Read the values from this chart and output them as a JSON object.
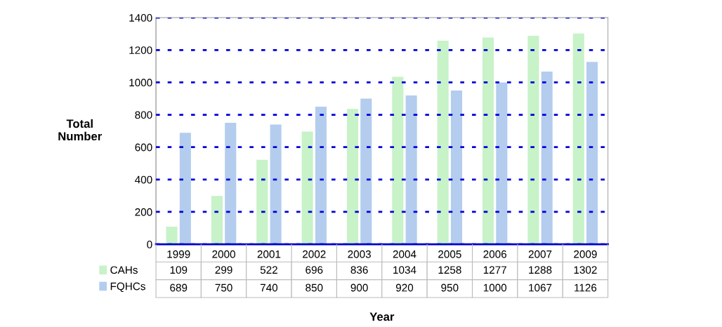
{
  "chart_data": {
    "type": "bar",
    "xlabel": "Year",
    "ylabel": "Total\nNumber",
    "categories": [
      "1999",
      "2000",
      "2001",
      "2002",
      "2003",
      "2004",
      "2005",
      "2006",
      "2007",
      "2009"
    ],
    "series": [
      {
        "name": "CAHs",
        "color": "#c8f2c8",
        "values": [
          109,
          299,
          522,
          696,
          836,
          1034,
          1258,
          1277,
          1288,
          1302
        ]
      },
      {
        "name": "FQHCs",
        "color": "#b4cdee",
        "values": [
          689,
          750,
          740,
          850,
          900,
          920,
          950,
          1000,
          1067,
          1126
        ]
      }
    ],
    "ylim": [
      0,
      1400
    ],
    "yticks": [
      0,
      200,
      400,
      600,
      800,
      1000,
      1200,
      1400
    ],
    "grid": "y",
    "legend": "bottom left",
    "data_labels": true
  }
}
